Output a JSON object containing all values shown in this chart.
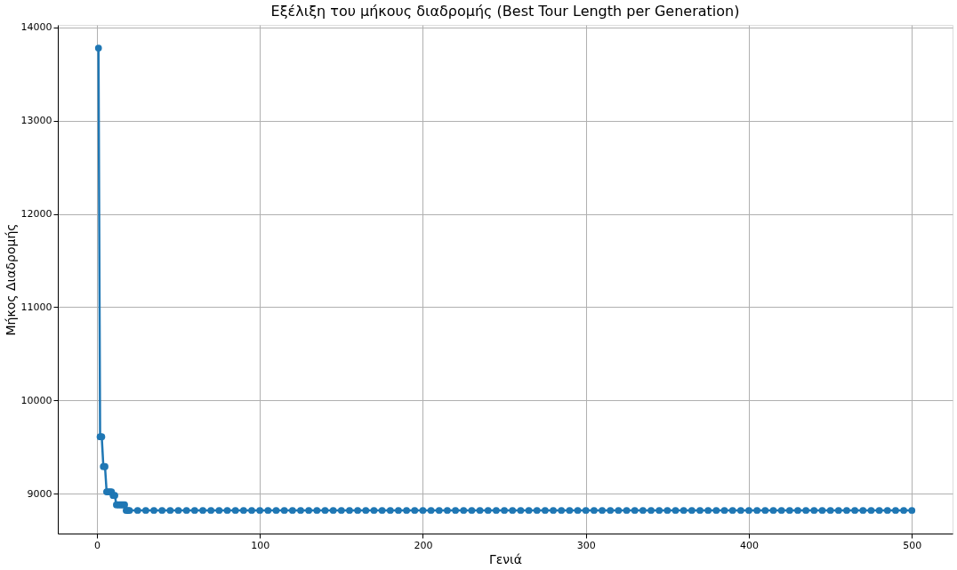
{
  "chart_data": {
    "type": "line",
    "title": "Εξέλιξη του μήκους διαδρομής (Best Tour Length per Generation)",
    "xlabel": "Γενιά",
    "ylabel": "Μήκος Διαδρομής",
    "x": [
      1,
      2,
      3,
      4,
      5,
      6,
      7,
      8,
      9,
      10,
      11,
      12,
      13,
      14,
      15,
      16,
      17,
      18,
      19,
      20,
      25,
      30,
      35,
      40,
      45,
      50,
      55,
      60,
      65,
      70,
      75,
      80,
      85,
      90,
      95,
      100,
      105,
      110,
      115,
      120,
      125,
      130,
      135,
      140,
      145,
      150,
      155,
      160,
      165,
      170,
      175,
      180,
      185,
      190,
      195,
      200,
      205,
      210,
      215,
      220,
      225,
      230,
      235,
      240,
      245,
      250,
      255,
      260,
      265,
      270,
      275,
      280,
      285,
      290,
      295,
      300,
      305,
      310,
      315,
      320,
      325,
      330,
      335,
      340,
      345,
      350,
      355,
      360,
      365,
      370,
      375,
      380,
      385,
      390,
      395,
      400,
      405,
      410,
      415,
      420,
      425,
      430,
      435,
      440,
      445,
      450,
      455,
      460,
      465,
      470,
      475,
      480,
      485,
      490,
      495,
      500
    ],
    "series": [
      {
        "color": "#1f77b4",
        "values": [
          13780,
          9610,
          9610,
          9290,
          9290,
          9020,
          9020,
          9020,
          9020,
          8980,
          8980,
          8880,
          8880,
          8880,
          8880,
          8880,
          8880,
          8820,
          8820,
          8820,
          8820,
          8820,
          8820,
          8820,
          8820,
          8820,
          8820,
          8820,
          8820,
          8820,
          8820,
          8820,
          8820,
          8820,
          8820,
          8820,
          8820,
          8820,
          8820,
          8820,
          8820,
          8820,
          8820,
          8820,
          8820,
          8820,
          8820,
          8820,
          8820,
          8820,
          8820,
          8820,
          8820,
          8820,
          8820,
          8820,
          8820,
          8820,
          8820,
          8820,
          8820,
          8820,
          8820,
          8820,
          8820,
          8820,
          8820,
          8820,
          8820,
          8820,
          8820,
          8820,
          8820,
          8820,
          8820,
          8820,
          8820,
          8820,
          8820,
          8820,
          8820,
          8820,
          8820,
          8820,
          8820,
          8820,
          8820,
          8820,
          8820,
          8820,
          8820,
          8820,
          8820,
          8820,
          8820,
          8820,
          8820,
          8820,
          8820,
          8820,
          8820,
          8820,
          8820,
          8820,
          8820,
          8820,
          8820,
          8820,
          8820,
          8820,
          8820,
          8820,
          8820,
          8820,
          8820,
          8820
        ]
      }
    ],
    "xlim": [
      -23.95,
      524.95
    ],
    "xticks": [
      0,
      100,
      200,
      300,
      400,
      500
    ],
    "ylim": [
      8572,
      14028
    ],
    "yticks": [
      9000,
      10000,
      11000,
      12000,
      13000,
      14000
    ],
    "grid": true,
    "marker": "circle",
    "line_style": "solid",
    "legend": false
  }
}
